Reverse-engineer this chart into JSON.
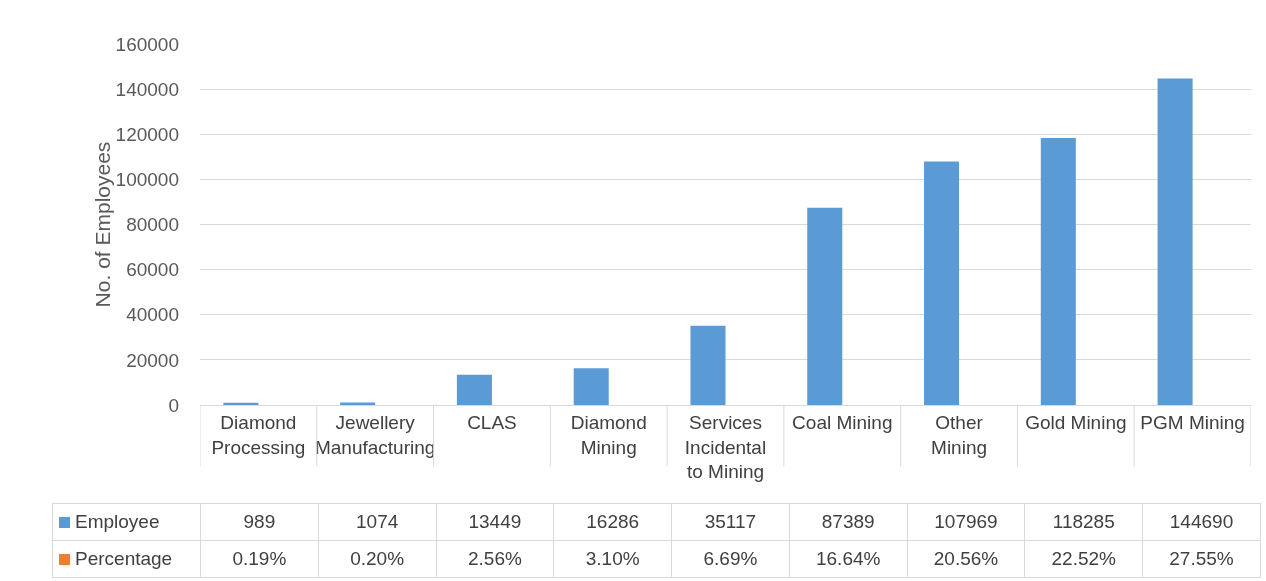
{
  "chart_data": {
    "type": "bar",
    "ylabel": "No. of Employees",
    "categories": [
      "Diamond Processing",
      "Jewellery Manufacturing",
      "CLAS",
      "Diamond Mining",
      "Services Incidental to Mining",
      "Coal Mining",
      "Other Mining",
      "Gold Mining",
      "PGM Mining"
    ],
    "series": [
      {
        "name": "Employee",
        "color": "#5b9bd5",
        "values": [
          989,
          1074,
          13449,
          16286,
          35117,
          87389,
          107969,
          118285,
          144690
        ],
        "value_labels": [
          "989",
          "1074",
          "13449",
          "16286",
          "35117",
          "87389",
          "107969",
          "118285",
          "144690"
        ]
      },
      {
        "name": "Percentage",
        "color": "#ed7d31",
        "values": [
          0.19,
          0.2,
          2.56,
          3.1,
          6.69,
          16.64,
          20.56,
          22.52,
          27.55
        ],
        "value_labels": [
          "0.19%",
          "0.20%",
          "2.56%",
          "3.10%",
          "6.69%",
          "16.64%",
          "20.56%",
          "22.52%",
          "27.55%"
        ]
      }
    ],
    "ylim": [
      0,
      160000
    ],
    "yticks": [
      0,
      20000,
      40000,
      60000,
      80000,
      100000,
      120000,
      140000,
      160000
    ],
    "grid": "y",
    "legend": "bottom"
  }
}
